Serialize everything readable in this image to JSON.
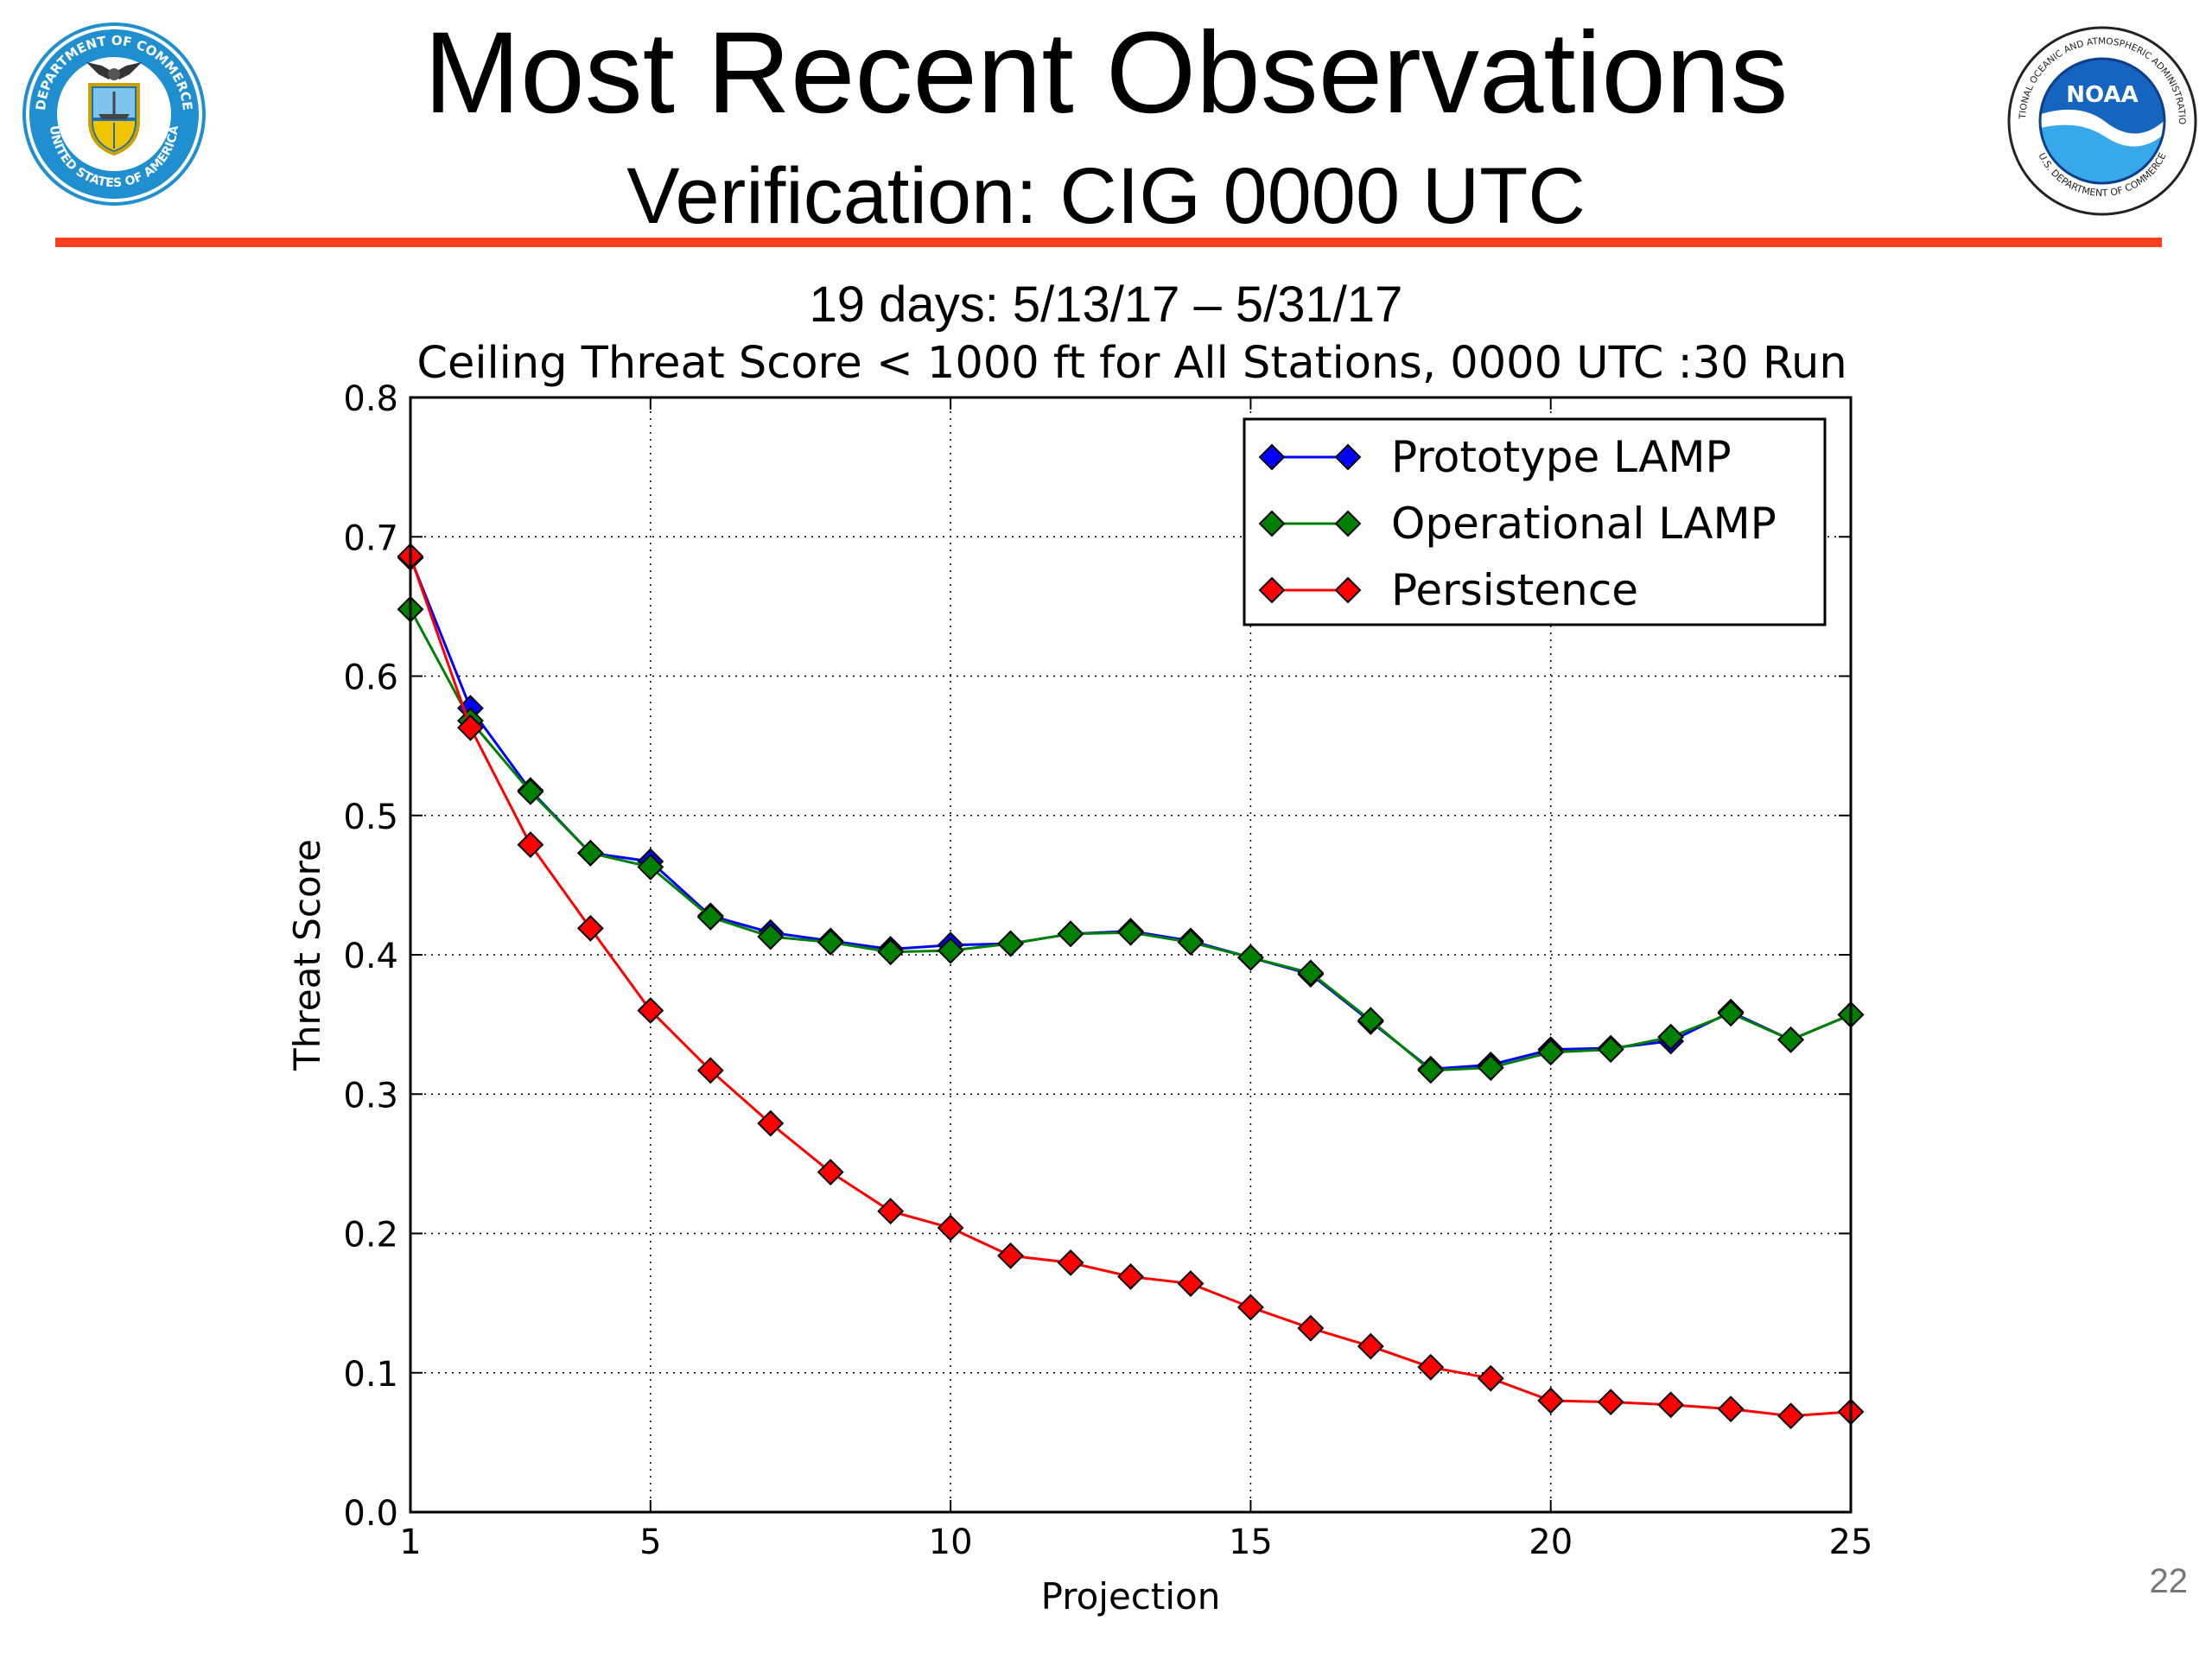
{
  "slide": {
    "title": "Most Recent Observations",
    "subtitle": "Verification: CIG 0000 UTC",
    "date_range": "19 days: 5/13/17 – 5/31/17",
    "slide_number": "22",
    "rule_color": "#ff3f1d",
    "left_logo": {
      "icon": "department-of-commerce-seal-icon",
      "ring_text": "DEPARTMENT OF COMMERCE",
      "bottom_text": "UNITED STATES OF AMERICA"
    },
    "right_logo": {
      "icon": "noaa-logo-icon",
      "center_text": "NOAA",
      "ring_text": "NATIONAL OCEANIC AND ATMOSPHERIC ADMINISTRATION",
      "bottom_text": "U.S. DEPARTMENT OF COMMERCE"
    }
  },
  "chart_data": {
    "type": "line",
    "title": "Ceiling Threat Score < 1000 ft for All Stations, 0000 UTC :30 Run",
    "xlabel": "Projection",
    "ylabel": "Threat Score",
    "xlim": [
      1,
      25
    ],
    "ylim": [
      0.0,
      0.8
    ],
    "xticks": [
      1,
      5,
      10,
      15,
      20,
      25
    ],
    "xtick_labels": [
      "1",
      "5",
      "10",
      "15",
      "20",
      "25"
    ],
    "yticks": [
      0.0,
      0.1,
      0.2,
      0.3,
      0.4,
      0.5,
      0.6,
      0.7,
      0.8
    ],
    "ytick_labels": [
      "0.0",
      "0.1",
      "0.2",
      "0.3",
      "0.4",
      "0.5",
      "0.6",
      "0.7",
      "0.8"
    ],
    "grid": true,
    "legend_position": "top-right",
    "x": [
      1,
      2,
      3,
      4,
      5,
      6,
      7,
      8,
      9,
      10,
      11,
      12,
      13,
      14,
      15,
      16,
      17,
      18,
      19,
      20,
      21,
      22,
      23,
      24,
      25
    ],
    "series": [
      {
        "name": "Prototype LAMP",
        "color": "#0000ff",
        "values": [
          0.685,
          0.577,
          0.518,
          0.473,
          0.467,
          0.428,
          0.416,
          0.41,
          0.404,
          0.407,
          0.408,
          0.415,
          0.417,
          0.41,
          0.398,
          0.386,
          0.352,
          0.318,
          0.321,
          0.332,
          0.333,
          0.338,
          0.359,
          0.339,
          0.357
        ]
      },
      {
        "name": "Operational LAMP",
        "color": "#008000",
        "values": [
          0.648,
          0.568,
          0.517,
          0.473,
          0.463,
          0.427,
          0.413,
          0.409,
          0.402,
          0.403,
          0.408,
          0.415,
          0.416,
          0.409,
          0.398,
          0.387,
          0.353,
          0.317,
          0.319,
          0.33,
          0.332,
          0.341,
          0.358,
          0.339,
          0.357
        ]
      },
      {
        "name": "Persistence",
        "color": "#ff0000",
        "values": [
          0.686,
          0.563,
          0.479,
          0.419,
          0.36,
          0.317,
          0.279,
          0.244,
          0.216,
          0.204,
          0.184,
          0.179,
          0.169,
          0.164,
          0.147,
          0.132,
          0.119,
          0.104,
          0.096,
          0.08,
          0.079,
          0.077,
          0.074,
          0.069,
          0.072
        ]
      }
    ]
  }
}
